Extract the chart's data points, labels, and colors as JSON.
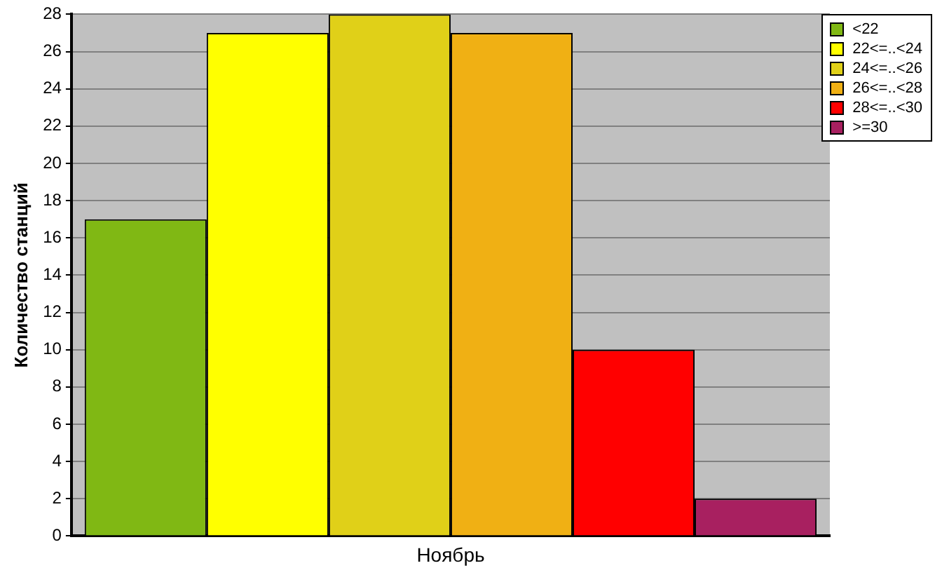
{
  "chart_data": {
    "type": "bar",
    "ylabel": "Количество станций",
    "categories": [
      "Ноябрь"
    ],
    "series": [
      {
        "name": "<22",
        "color": "#80b814",
        "values": [
          17
        ]
      },
      {
        "name": "22<=..<24",
        "color": "#ffff00",
        "values": [
          27
        ]
      },
      {
        "name": "24<=..<26",
        "color": "#e0d018",
        "values": [
          28
        ]
      },
      {
        "name": "26<=..<28",
        "color": "#f0b014",
        "values": [
          27
        ]
      },
      {
        "name": "28<=..<30",
        "color": "#ff0000",
        "values": [
          10
        ]
      },
      {
        "name": ">=30",
        "color": "#a82060",
        "values": [
          2
        ]
      }
    ],
    "ylim": [
      0,
      28
    ],
    "yticks": [
      0,
      2,
      4,
      6,
      8,
      10,
      12,
      14,
      16,
      18,
      20,
      22,
      24,
      26,
      28
    ],
    "grid": "y",
    "legend": "top right"
  }
}
